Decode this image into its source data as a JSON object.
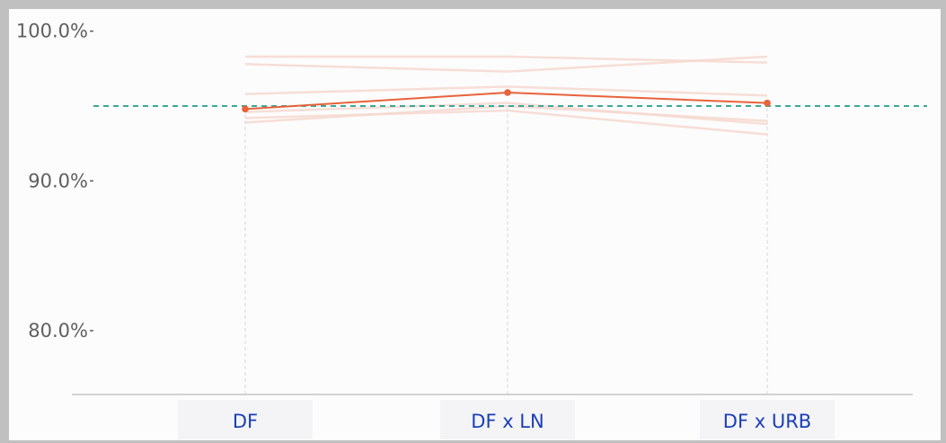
{
  "chart_data": {
    "type": "line",
    "categories": [
      "DF",
      "DF x LN",
      "DF x URB"
    ],
    "y_ticks": [
      "80.0%",
      "90.0%",
      "100.0%"
    ],
    "ylim": [
      75.8,
      101.0
    ],
    "reference_line": {
      "value": 95.0,
      "style": "dashed",
      "color": "#3aa89a"
    },
    "highlight_series": {
      "values": [
        94.8,
        95.9,
        95.2
      ],
      "color": "#e8623a"
    },
    "background_series": [
      {
        "values": [
          98.3,
          98.3,
          97.9
        ]
      },
      {
        "values": [
          97.8,
          97.3,
          98.3
        ]
      },
      {
        "values": [
          95.8,
          96.3,
          95.7
        ]
      },
      {
        "values": [
          94.6,
          95.2,
          93.8
        ]
      },
      {
        "values": [
          94.2,
          94.7,
          93.1
        ]
      },
      {
        "values": [
          93.9,
          95.0,
          94.0
        ]
      }
    ],
    "background_series_color": "#f6d8cf",
    "grid": false
  }
}
